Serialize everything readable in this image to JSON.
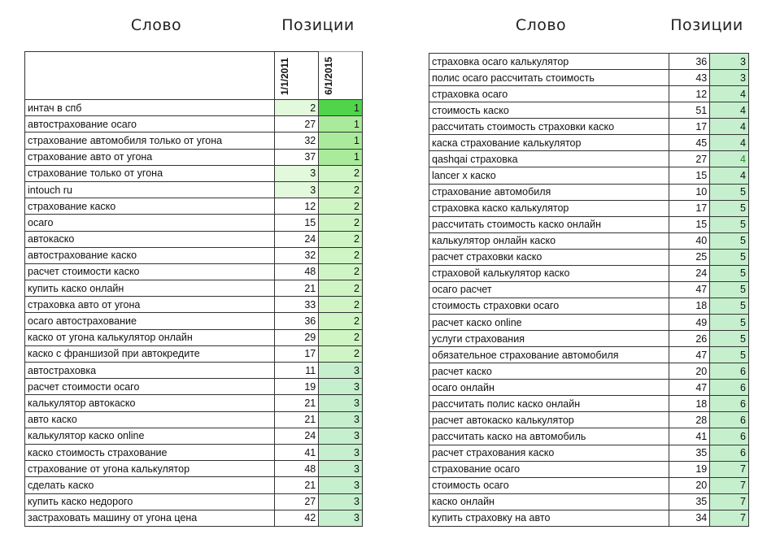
{
  "left": {
    "heading_word": "Слово",
    "heading_positions": "Позиции",
    "date1": "1/1/2011",
    "date2": "6/1/2015",
    "rows": [
      [
        "интач в спб",
        "2",
        "1"
      ],
      [
        "автострахование осаго",
        "27",
        "1"
      ],
      [
        "страхование автомобиля только от угона",
        "32",
        "1"
      ],
      [
        "страхование авто от угона",
        "37",
        "1"
      ],
      [
        "страхование только от угона",
        "3",
        "2"
      ],
      [
        "intouch ru",
        "3",
        "2"
      ],
      [
        "страхование каско",
        "12",
        "2"
      ],
      [
        "осаго",
        "15",
        "2"
      ],
      [
        "автокаско",
        "24",
        "2"
      ],
      [
        "автострахование каско",
        "32",
        "2"
      ],
      [
        "расчет стоимости каско",
        "48",
        "2"
      ],
      [
        "купить каско онлайн",
        "21",
        "2"
      ],
      [
        "страховка авто от угона",
        "33",
        "2"
      ],
      [
        "осаго автострахование",
        "36",
        "2"
      ],
      [
        "каско от угона калькулятор онлайн",
        "29",
        "2"
      ],
      [
        "каско с франшизой при автокредите",
        "17",
        "2"
      ],
      [
        "автостраховка",
        "11",
        "3"
      ],
      [
        "расчет стоимости осаго",
        "19",
        "3"
      ],
      [
        "калькулятор автокаско",
        "21",
        "3"
      ],
      [
        "авто каско",
        "21",
        "3"
      ],
      [
        "калькулятор каско online",
        "24",
        "3"
      ],
      [
        "каско стоимость страхование",
        "41",
        "3"
      ],
      [
        "страхование от угона калькулятор",
        "48",
        "3"
      ],
      [
        "сделать каско",
        "21",
        "3"
      ],
      [
        "купить каско недорого",
        "27",
        "3"
      ],
      [
        "застраховать машину от угона цена",
        "42",
        "3"
      ]
    ]
  },
  "right": {
    "heading_word": "Слово",
    "heading_positions": "Позиции",
    "rows": [
      [
        "страховка осаго калькулятор",
        "36",
        "3"
      ],
      [
        "полис осаго рассчитать стоимость",
        "43",
        "3"
      ],
      [
        "страховка осаго",
        "12",
        "4"
      ],
      [
        "стоимость каско",
        "51",
        "4"
      ],
      [
        "рассчитать стоимость страховки каско",
        "17",
        "4"
      ],
      [
        "каска страхование калькулятор",
        "45",
        "4"
      ],
      [
        "qashqai страховка",
        "27",
        "4"
      ],
      [
        "lancer x каско",
        "15",
        "4"
      ],
      [
        "страхование автомобиля",
        "10",
        "5"
      ],
      [
        "страховка каско калькулятор",
        "17",
        "5"
      ],
      [
        "рассчитать стоимость каско онлайн",
        "15",
        "5"
      ],
      [
        "калькулятор онлайн каско",
        "40",
        "5"
      ],
      [
        "расчет страховки каско",
        "25",
        "5"
      ],
      [
        "страховой калькулятор каско",
        "24",
        "5"
      ],
      [
        "осаго расчет",
        "47",
        "5"
      ],
      [
        "стоимость страховки осаго",
        "18",
        "5"
      ],
      [
        "расчет каско online",
        "49",
        "5"
      ],
      [
        "услуги страхования",
        "26",
        "5"
      ],
      [
        "обязательное страхование автомобиля",
        "47",
        "5"
      ],
      [
        "расчет каско",
        "20",
        "6"
      ],
      [
        "осаго онлайн",
        "47",
        "6"
      ],
      [
        "рассчитать полис каско онлайн",
        "18",
        "6"
      ],
      [
        "расчет автокаско калькулятор",
        "28",
        "6"
      ],
      [
        "рассчитать каско на автомобиль",
        "41",
        "6"
      ],
      [
        "расчет страхования каско",
        "35",
        "6"
      ],
      [
        "страхование осаго",
        "19",
        "7"
      ],
      [
        "стоимость осаго",
        "20",
        "7"
      ],
      [
        "каско онлайн",
        "35",
        "7"
      ],
      [
        "купить страховку на авто",
        "34",
        "7"
      ]
    ]
  },
  "colors": {
    "top_rank": "#4fd44a",
    "rank1": "#a9eb9a",
    "rank2": "#cff5c4",
    "rank_other": "#c6efce",
    "low_old": "#e3f9dc"
  }
}
